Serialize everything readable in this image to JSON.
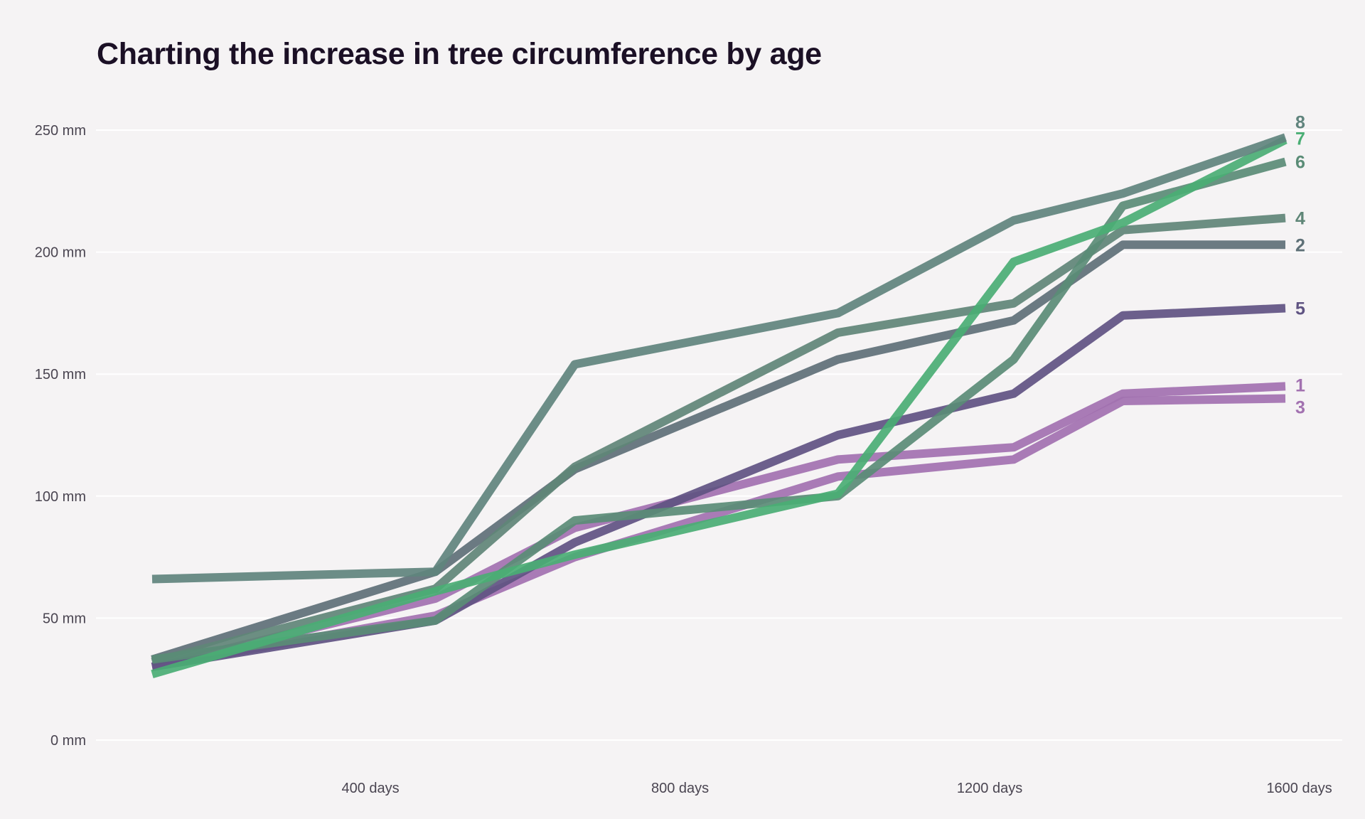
{
  "chart_data": {
    "type": "line",
    "title": "Charting the increase in tree circumference by age",
    "xlabel": "",
    "ylabel": "",
    "xlim": [
      0,
      1650
    ],
    "ylim": [
      0,
      250
    ],
    "x_ticks": [
      {
        "value": 400,
        "label": "400 days"
      },
      {
        "value": 800,
        "label": "800 days"
      },
      {
        "value": 1200,
        "label": "1200 days"
      },
      {
        "value": 1600,
        "label": "1600 days"
      }
    ],
    "y_ticks": [
      {
        "value": 0,
        "label": "0 mm"
      },
      {
        "value": 50,
        "label": "50 mm"
      },
      {
        "value": 100,
        "label": "100 mm"
      },
      {
        "value": 150,
        "label": "150 mm"
      },
      {
        "value": 200,
        "label": "200 mm"
      },
      {
        "value": 250,
        "label": "250 mm"
      }
    ],
    "grid": true,
    "x": [
      118,
      484,
      664,
      1004,
      1231,
      1372,
      1582
    ],
    "series": [
      {
        "name": "1",
        "color": "#a271b0",
        "values": [
          30,
          58,
          87,
          115,
          120,
          142,
          145
        ]
      },
      {
        "name": "2",
        "color": "#5e7077",
        "values": [
          33,
          69,
          111,
          156,
          172,
          203,
          203
        ]
      },
      {
        "name": "3",
        "color": "#a271b0",
        "values": [
          30,
          51,
          75,
          108,
          115,
          139,
          140
        ]
      },
      {
        "name": "4",
        "color": "#5f8677",
        "values": [
          32,
          62,
          112,
          167,
          179,
          209,
          214
        ]
      },
      {
        "name": "5",
        "color": "#5f5382",
        "values": [
          30,
          49,
          81,
          125,
          142,
          174,
          177
        ]
      },
      {
        "name": "6",
        "color": "#5a8c76",
        "values": [
          33,
          49,
          90,
          100,
          156,
          219,
          237
        ]
      },
      {
        "name": "7",
        "color": "#4aae74",
        "values": [
          27,
          61,
          76,
          101,
          196,
          212,
          246
        ]
      },
      {
        "name": "8",
        "color": "#60847d",
        "values": [
          66,
          69,
          154,
          175,
          213,
          224,
          247
        ]
      }
    ]
  }
}
